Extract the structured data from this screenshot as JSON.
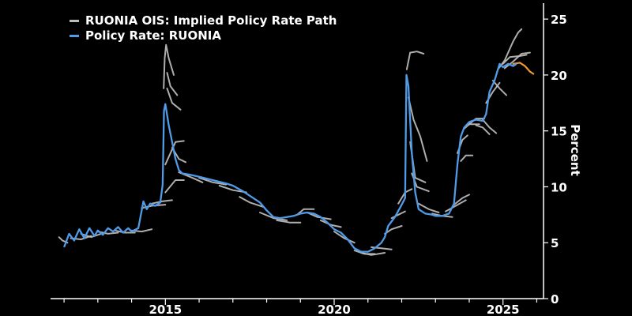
{
  "chart_data": {
    "type": "line",
    "title": "",
    "xlabel": "",
    "ylabel": "Percent",
    "xlim": [
      2011.6,
      2026.2
    ],
    "ylim": [
      0,
      26
    ],
    "x_ticks": [
      2015,
      2020,
      2025
    ],
    "y_ticks": [
      0,
      5,
      10,
      15,
      20,
      25
    ],
    "legend_position": "top-left",
    "colors": {
      "ois": "#bdbdbd",
      "policy": "#4f9be8",
      "latest_ois": "#f09a34",
      "axis": "#ffffff"
    },
    "series": [
      {
        "name": "Policy Rate: RUONIA",
        "points": [
          [
            2012.0,
            4.6
          ],
          [
            2012.15,
            5.8
          ],
          [
            2012.3,
            5.2
          ],
          [
            2012.45,
            6.2
          ],
          [
            2012.6,
            5.4
          ],
          [
            2012.75,
            6.3
          ],
          [
            2012.9,
            5.6
          ],
          [
            2013.0,
            6.1
          ],
          [
            2013.15,
            5.7
          ],
          [
            2013.3,
            6.3
          ],
          [
            2013.45,
            6.0
          ],
          [
            2013.6,
            6.4
          ],
          [
            2013.75,
            5.9
          ],
          [
            2013.9,
            6.3
          ],
          [
            2014.0,
            6.0
          ],
          [
            2014.2,
            6.3
          ],
          [
            2014.3,
            7.9
          ],
          [
            2014.35,
            8.7
          ],
          [
            2014.45,
            8.0
          ],
          [
            2014.55,
            8.5
          ],
          [
            2014.7,
            8.3
          ],
          [
            2014.85,
            8.6
          ],
          [
            2014.92,
            10.2
          ],
          [
            2014.96,
            16.8
          ],
          [
            2015.0,
            17.4
          ],
          [
            2015.1,
            15.5
          ],
          [
            2015.2,
            14.0
          ],
          [
            2015.3,
            12.5
          ],
          [
            2015.4,
            11.5
          ],
          [
            2015.5,
            11.2
          ],
          [
            2015.7,
            11.1
          ],
          [
            2016.0,
            10.9
          ],
          [
            2016.4,
            10.6
          ],
          [
            2016.8,
            10.3
          ],
          [
            2017.0,
            10.1
          ],
          [
            2017.3,
            9.6
          ],
          [
            2017.5,
            9.2
          ],
          [
            2017.8,
            8.6
          ],
          [
            2018.0,
            7.9
          ],
          [
            2018.2,
            7.3
          ],
          [
            2018.4,
            7.2
          ],
          [
            2018.6,
            7.3
          ],
          [
            2018.8,
            7.4
          ],
          [
            2019.0,
            7.6
          ],
          [
            2019.2,
            7.7
          ],
          [
            2019.4,
            7.6
          ],
          [
            2019.6,
            7.3
          ],
          [
            2019.8,
            6.8
          ],
          [
            2020.0,
            6.2
          ],
          [
            2020.2,
            5.9
          ],
          [
            2020.4,
            5.3
          ],
          [
            2020.6,
            4.5
          ],
          [
            2020.8,
            4.2
          ],
          [
            2021.0,
            4.2
          ],
          [
            2021.2,
            4.5
          ],
          [
            2021.4,
            5.0
          ],
          [
            2021.5,
            5.5
          ],
          [
            2021.6,
            6.5
          ],
          [
            2021.8,
            7.3
          ],
          [
            2022.0,
            8.4
          ],
          [
            2022.1,
            9.0
          ],
          [
            2022.14,
            20.0
          ],
          [
            2022.2,
            19.0
          ],
          [
            2022.3,
            13.0
          ],
          [
            2022.4,
            9.5
          ],
          [
            2022.5,
            8.0
          ],
          [
            2022.7,
            7.6
          ],
          [
            2022.9,
            7.5
          ],
          [
            2023.0,
            7.4
          ],
          [
            2023.2,
            7.4
          ],
          [
            2023.4,
            7.6
          ],
          [
            2023.55,
            8.5
          ],
          [
            2023.65,
            12.0
          ],
          [
            2023.75,
            14.5
          ],
          [
            2023.85,
            15.3
          ],
          [
            2024.0,
            15.8
          ],
          [
            2024.2,
            16.0
          ],
          [
            2024.4,
            15.9
          ],
          [
            2024.5,
            16.5
          ],
          [
            2024.6,
            18.5
          ],
          [
            2024.75,
            19.5
          ],
          [
            2024.9,
            21.0
          ],
          [
            2025.0,
            20.7
          ],
          [
            2025.15,
            21.0
          ],
          [
            2025.3,
            20.8
          ],
          [
            2025.4,
            21.0
          ]
        ]
      },
      {
        "name": "RUONIA OIS: Implied Policy Rate Path",
        "points": [],
        "paths": [
          [
            [
              2011.85,
              5.5
            ],
            [
              2011.95,
              5.2
            ],
            [
              2012.1,
              5.0
            ]
          ],
          [
            [
              2012.2,
              5.4
            ],
            [
              2012.5,
              5.3
            ],
            [
              2012.8,
              5.6
            ]
          ],
          [
            [
              2012.5,
              5.8
            ],
            [
              2012.8,
              5.5
            ],
            [
              2013.1,
              5.8
            ]
          ],
          [
            [
              2013.0,
              6.0
            ],
            [
              2013.3,
              5.8
            ],
            [
              2013.6,
              5.9
            ]
          ],
          [
            [
              2013.5,
              6.1
            ],
            [
              2013.8,
              5.9
            ],
            [
              2014.1,
              5.9
            ]
          ],
          [
            [
              2014.0,
              6.1
            ],
            [
              2014.3,
              6.0
            ],
            [
              2014.6,
              6.2
            ]
          ],
          [
            [
              2014.3,
              8.1
            ],
            [
              2014.6,
              8.3
            ],
            [
              2015.0,
              8.4
            ]
          ],
          [
            [
              2014.6,
              8.5
            ],
            [
              2014.9,
              8.7
            ],
            [
              2015.2,
              8.8
            ]
          ],
          [
            [
              2014.95,
              18.8
            ],
            [
              2014.98,
              21.5
            ],
            [
              2015.02,
              22.7
            ],
            [
              2015.1,
              21.5
            ],
            [
              2015.25,
              20.0
            ]
          ],
          [
            [
              2015.05,
              20.2
            ],
            [
              2015.15,
              19.0
            ],
            [
              2015.35,
              18.2
            ]
          ],
          [
            [
              2015.05,
              18.8
            ],
            [
              2015.2,
              17.5
            ],
            [
              2015.45,
              16.9
            ]
          ],
          [
            [
              2015.0,
              12.0
            ],
            [
              2015.3,
              14.0
            ],
            [
              2015.55,
              14.1
            ]
          ],
          [
            [
              2015.2,
              13.5
            ],
            [
              2015.4,
              12.5
            ],
            [
              2015.6,
              12.2
            ]
          ],
          [
            [
              2015.0,
              9.5
            ],
            [
              2015.3,
              10.6
            ],
            [
              2015.55,
              10.6
            ]
          ],
          [
            [
              2015.4,
              11.3
            ],
            [
              2015.8,
              10.8
            ],
            [
              2016.1,
              10.4
            ]
          ],
          [
            [
              2016.0,
              10.8
            ],
            [
              2016.4,
              10.4
            ],
            [
              2016.8,
              10.2
            ]
          ],
          [
            [
              2016.6,
              10.1
            ],
            [
              2017.0,
              9.7
            ],
            [
              2017.4,
              9.5
            ]
          ],
          [
            [
              2017.2,
              9.1
            ],
            [
              2017.5,
              8.6
            ],
            [
              2017.9,
              8.2
            ]
          ],
          [
            [
              2017.8,
              7.7
            ],
            [
              2018.2,
              7.2
            ],
            [
              2018.6,
              7.0
            ]
          ],
          [
            [
              2018.3,
              7.0
            ],
            [
              2018.7,
              6.8
            ],
            [
              2019.0,
              6.8
            ]
          ],
          [
            [
              2018.9,
              7.5
            ],
            [
              2019.1,
              8.0
            ],
            [
              2019.4,
              8.0
            ]
          ],
          [
            [
              2019.2,
              7.7
            ],
            [
              2019.5,
              7.3
            ],
            [
              2019.9,
              7.1
            ]
          ],
          [
            [
              2019.6,
              7.0
            ],
            [
              2019.9,
              6.6
            ],
            [
              2020.2,
              6.4
            ]
          ],
          [
            [
              2020.0,
              6.0
            ],
            [
              2020.3,
              5.4
            ],
            [
              2020.6,
              5.0
            ]
          ],
          [
            [
              2020.6,
              4.3
            ],
            [
              2020.9,
              4.0
            ],
            [
              2021.2,
              4.0
            ]
          ],
          [
            [
              2020.8,
              4.1
            ],
            [
              2021.1,
              3.9
            ],
            [
              2021.5,
              4.1
            ]
          ],
          [
            [
              2021.1,
              4.6
            ],
            [
              2021.4,
              4.5
            ],
            [
              2021.7,
              4.4
            ]
          ],
          [
            [
              2021.5,
              5.8
            ],
            [
              2021.7,
              6.2
            ],
            [
              2022.0,
              6.5
            ]
          ],
          [
            [
              2021.7,
              7.2
            ],
            [
              2021.9,
              7.5
            ],
            [
              2022.1,
              7.8
            ]
          ],
          [
            [
              2021.9,
              8.5
            ],
            [
              2022.1,
              9.5
            ],
            [
              2022.3,
              9.8
            ]
          ],
          [
            [
              2022.15,
              20.5
            ],
            [
              2022.25,
              22.0
            ],
            [
              2022.45,
              22.1
            ],
            [
              2022.65,
              21.9
            ]
          ],
          [
            [
              2022.2,
              18.0
            ],
            [
              2022.35,
              16.0
            ],
            [
              2022.55,
              14.5
            ],
            [
              2022.75,
              12.3
            ]
          ],
          [
            [
              2022.25,
              14.0
            ],
            [
              2022.4,
              10.8
            ],
            [
              2022.7,
              10.4
            ]
          ],
          [
            [
              2022.3,
              11.2
            ],
            [
              2022.45,
              10.0
            ],
            [
              2022.8,
              9.6
            ]
          ],
          [
            [
              2022.5,
              8.5
            ],
            [
              2022.8,
              8.0
            ],
            [
              2023.1,
              7.7
            ]
          ],
          [
            [
              2022.9,
              7.6
            ],
            [
              2023.2,
              7.4
            ],
            [
              2023.5,
              7.3
            ]
          ],
          [
            [
              2023.3,
              7.8
            ],
            [
              2023.6,
              8.3
            ],
            [
              2023.9,
              8.8
            ]
          ],
          [
            [
              2023.55,
              8.4
            ],
            [
              2023.8,
              9.0
            ],
            [
              2024.0,
              9.3
            ]
          ],
          [
            [
              2023.65,
              13.0
            ],
            [
              2023.8,
              14.2
            ],
            [
              2023.95,
              14.6
            ]
          ],
          [
            [
              2023.75,
              12.3
            ],
            [
              2023.9,
              12.8
            ],
            [
              2024.1,
              12.8
            ]
          ],
          [
            [
              2023.85,
              15.2
            ],
            [
              2024.0,
              15.6
            ],
            [
              2024.3,
              15.6
            ]
          ],
          [
            [
              2024.0,
              15.6
            ],
            [
              2024.2,
              16.1
            ],
            [
              2024.45,
              16.1
            ]
          ],
          [
            [
              2024.2,
              15.5
            ],
            [
              2024.4,
              15.3
            ],
            [
              2024.6,
              14.7
            ]
          ],
          [
            [
              2024.4,
              16.0
            ],
            [
              2024.6,
              15.3
            ],
            [
              2024.8,
              14.8
            ]
          ],
          [
            [
              2024.5,
              17.5
            ],
            [
              2024.7,
              18.5
            ],
            [
              2024.9,
              19.3
            ]
          ],
          [
            [
              2024.7,
              19.5
            ],
            [
              2024.9,
              18.8
            ],
            [
              2025.1,
              18.2
            ]
          ],
          [
            [
              2024.85,
              20.5
            ],
            [
              2025.05,
              21.3
            ],
            [
              2025.3,
              23.0
            ],
            [
              2025.45,
              23.8
            ],
            [
              2025.55,
              24.1
            ]
          ],
          [
            [
              2025.0,
              21.0
            ],
            [
              2025.2,
              21.6
            ],
            [
              2025.5,
              21.7
            ],
            [
              2025.7,
              21.8
            ]
          ],
          [
            [
              2025.05,
              20.6
            ],
            [
              2025.3,
              21.2
            ],
            [
              2025.55,
              21.9
            ],
            [
              2025.8,
              22.0
            ]
          ]
        ]
      },
      {
        "name": "",
        "points": [
          [
            2025.3,
            21.0
          ],
          [
            2025.5,
            21.1
          ],
          [
            2025.65,
            20.8
          ],
          [
            2025.8,
            20.3
          ],
          [
            2025.9,
            20.1
          ]
        ]
      }
    ]
  },
  "legend": {
    "items": [
      {
        "label": "RUONIA OIS: Implied Policy Rate Path",
        "color": "#bdbdbd"
      },
      {
        "label": "Policy Rate: RUONIA",
        "color": "#4f9be8"
      }
    ]
  }
}
